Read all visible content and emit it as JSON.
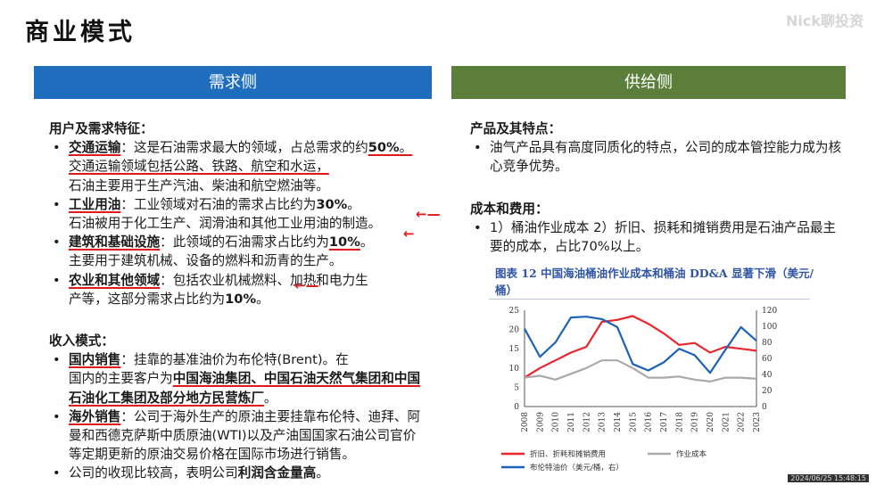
{
  "page": {
    "title": "商业模式",
    "watermark": "Nick聊投资",
    "timestamp": "2024/06/25 15:48:15"
  },
  "left": {
    "header": "需求侧",
    "users_title": "用户及需求特征：",
    "transport_term": "交通运输",
    "transport_p1": "：这是石油需求最大的领域，占总需求的约",
    "transport_pct": "50%",
    "transport_p2": "。交通运输领域包括公路、铁路、航空和水运，",
    "transport_p3": "石油主要用于生产汽油、柴油和航空燃油等。",
    "industry_term": "工业用油",
    "industry_p1": "：工业领域对石油的需求占比约为",
    "industry_pct": "30%",
    "industry_p2": "。",
    "industry_p3": "石油被用于化工生产、润滑油和其他工业用油的制造。",
    "infra_term": "建筑和基础设施",
    "infra_p1": "：此领域的石油需求占比约为",
    "infra_pct": "10%",
    "infra_p2": "。",
    "infra_p3": "主要用于建筑机械、设备的燃料和沥青的生产。",
    "agri_term": "农业和其他领域",
    "agri_p1": "：包括农业机械燃料、加热和电力生",
    "agri_p2": "产等，这部分需求占比约为",
    "agri_pct": "10%",
    "agri_p3": "。",
    "revenue_title": "收入模式：",
    "domestic_term": "国内销售",
    "domestic_p1": "：挂靠的基准油价为布伦特(Brent)。在",
    "domestic_p2": "国内的主要客户为",
    "domestic_clients": "中国海油集团、中国石油天然气集团和中国石油化工集团及部分地方民营炼厂",
    "domestic_p3": "。",
    "overseas_term": "海外销售",
    "overseas_p1": "：公司于海外生产的原油主要挂靠布伦特、迪拜、阿曼和西德克萨斯中质原油(WTI)以及产油国国家石油公司官价等定期更新的原油交易价格在国际市场进行销售。",
    "profit_p1": "公司的收现比较高，表明公司",
    "profit_bold": "利润含金量高",
    "profit_p2": "。"
  },
  "right": {
    "header": "供给侧",
    "product_title": "产品及其特点：",
    "product_text": "油气产品具有高度同质化的特点，公司的成本管控能力成为核心竞争优势。",
    "cost_title": "成本和费用：",
    "cost_text": "1）桶油作业成本 2）折旧、损耗和摊销费用是石油产品最主要的成本，占比70%以上。"
  },
  "chart_data": {
    "type": "line",
    "title": "图表 12  中国海油桶油作业成本和桶油 DD&A 显著下滑（美元/桶）",
    "x": [
      "2008",
      "2009",
      "2010",
      "2011",
      "2012",
      "2013",
      "2014",
      "2015",
      "2016",
      "2017",
      "2018",
      "2019",
      "2020",
      "2021",
      "2022",
      "2023"
    ],
    "ylim_left": [
      0,
      25
    ],
    "yticks_left": [
      0,
      5,
      10,
      15,
      20,
      25
    ],
    "ylim_right": [
      0,
      120
    ],
    "yticks_right": [
      0,
      20,
      40,
      60,
      80,
      100,
      120
    ],
    "grid": false,
    "legend_position": "bottom",
    "series": [
      {
        "name": "折旧、折耗和摊销费用",
        "axis": "left",
        "color": "#e8262b",
        "values": [
          7.5,
          10.0,
          12.0,
          14.0,
          15.5,
          22.0,
          22.5,
          23.5,
          21.5,
          19.0,
          16.0,
          16.5,
          14.0,
          15.5,
          15.0,
          14.5
        ]
      },
      {
        "name": "作业成本",
        "axis": "left",
        "color": "#a9a9a9",
        "values": [
          7.5,
          8.0,
          7.0,
          8.5,
          10.0,
          12.0,
          12.0,
          10.0,
          7.5,
          7.5,
          7.8,
          7.0,
          6.5,
          7.5,
          7.5,
          7.2
        ]
      },
      {
        "name": "布伦特油价（美元/桶，右）",
        "axis": "right",
        "color": "#1c63b7",
        "values": [
          97,
          62,
          80,
          111,
          112,
          109,
          99,
          53,
          45,
          55,
          72,
          64,
          42,
          71,
          99,
          82
        ]
      }
    ]
  }
}
